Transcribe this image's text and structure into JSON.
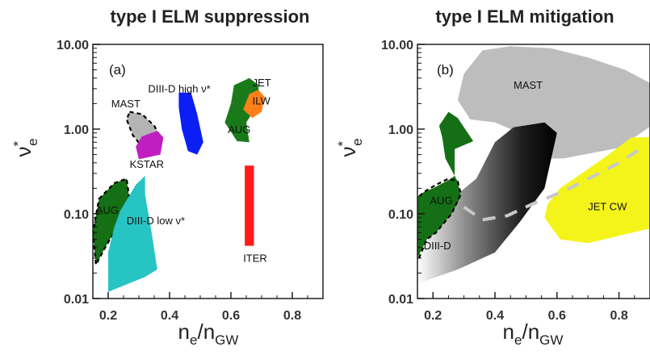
{
  "chart_data": [
    {
      "type": "area",
      "panel": "(a)",
      "title": "type I ELM suppression",
      "xlabel": {
        "main": "n",
        "sub1": "e",
        "sep": "/n",
        "sub2": "GW"
      },
      "ylabel": {
        "main": "ν",
        "sup": "*",
        "sub": "e"
      },
      "xlim": [
        0.15,
        0.9
      ],
      "ylim": [
        0.01,
        10.0
      ],
      "yscale": "log",
      "xticks": [
        0.2,
        0.4,
        0.6,
        0.8
      ],
      "xtick_labels": [
        "0.2",
        "0.4",
        "0.6",
        "0.8"
      ],
      "yticks": [
        0.01,
        0.1,
        1.0,
        10.0
      ],
      "ytick_labels": [
        "0.01",
        "0.10",
        "1.00",
        "10.00"
      ],
      "grid": false,
      "regions": [
        {
          "name": "MAST",
          "color": "#b4b4b4",
          "dashed": true,
          "polygon": [
            [
              0.27,
              1.6
            ],
            [
              0.31,
              1.5
            ],
            [
              0.35,
              1.1
            ],
            [
              0.37,
              0.8
            ],
            [
              0.36,
              0.62
            ],
            [
              0.31,
              0.62
            ],
            [
              0.28,
              0.85
            ],
            [
              0.26,
              1.3
            ]
          ]
        },
        {
          "name": "KSTAR",
          "color": "#c11ec1",
          "polygon": [
            [
              0.31,
              0.82
            ],
            [
              0.36,
              0.95
            ],
            [
              0.38,
              0.8
            ],
            [
              0.37,
              0.5
            ],
            [
              0.3,
              0.44
            ],
            [
              0.29,
              0.62
            ]
          ]
        },
        {
          "name": "DIII-D high ν*",
          "color": "#0b1ff5",
          "polygon": [
            [
              0.43,
              2.7
            ],
            [
              0.47,
              2.7
            ],
            [
              0.49,
              1.5
            ],
            [
              0.51,
              0.7
            ],
            [
              0.49,
              0.5
            ],
            [
              0.46,
              0.55
            ],
            [
              0.44,
              1.0
            ],
            [
              0.43,
              1.8
            ]
          ]
        },
        {
          "name": "AUG",
          "color": "#1a7a1a",
          "polygon": [
            [
              0.61,
              3.3
            ],
            [
              0.66,
              4.0
            ],
            [
              0.69,
              3.3
            ],
            [
              0.69,
              2.0
            ],
            [
              0.65,
              1.2
            ],
            [
              0.66,
              0.7
            ],
            [
              0.62,
              0.72
            ],
            [
              0.58,
              1.2
            ],
            [
              0.6,
              2.0
            ]
          ]
        },
        {
          "name": "JET ILW",
          "color": "#ff7f1a",
          "polygon": [
            [
              0.66,
              2.6
            ],
            [
              0.69,
              2.9
            ],
            [
              0.71,
              2.4
            ],
            [
              0.7,
              1.6
            ],
            [
              0.67,
              1.35
            ],
            [
              0.64,
              1.7
            ]
          ]
        },
        {
          "name": "ITER",
          "color": "#ff1a1a",
          "polygon": [
            [
              0.645,
              0.37
            ],
            [
              0.675,
              0.37
            ],
            [
              0.675,
              0.042
            ],
            [
              0.645,
              0.042
            ]
          ]
        },
        {
          "name": "AUG",
          "color": "#157015",
          "dashed": true,
          "polygon": [
            [
              0.17,
              0.15
            ],
            [
              0.22,
              0.23
            ],
            [
              0.26,
              0.26
            ],
            [
              0.27,
              0.14
            ],
            [
              0.23,
              0.07
            ],
            [
              0.19,
              0.04
            ],
            [
              0.16,
              0.025
            ],
            [
              0.15,
              0.06
            ]
          ]
        },
        {
          "name": "DIII-D low ν*",
          "color": "#27c4c4",
          "polygon": [
            [
              0.2,
              0.012
            ],
            [
              0.32,
              0.018
            ],
            [
              0.36,
              0.022
            ],
            [
              0.34,
              0.065
            ],
            [
              0.32,
              0.17
            ],
            [
              0.32,
              0.28
            ],
            [
              0.29,
              0.22
            ],
            [
              0.24,
              0.11
            ],
            [
              0.22,
              0.07
            ],
            [
              0.2,
              0.035
            ]
          ]
        }
      ],
      "labels": [
        {
          "text": "MAST",
          "x": 0.21,
          "y": 1.8
        },
        {
          "text": "KSTAR",
          "x": 0.27,
          "y": 0.35
        },
        {
          "text": "DIII-D high ν*",
          "x": 0.33,
          "y": 2.7
        },
        {
          "text": "JET",
          "x": 0.67,
          "y": 3.2
        },
        {
          "text": "ILW",
          "x": 0.67,
          "y": 1.95
        },
        {
          "text": "AUG",
          "x": 0.59,
          "y": 0.9
        },
        {
          "text": "AUG",
          "x": 0.16,
          "y": 0.1
        },
        {
          "text": "DIII-D low ν*",
          "x": 0.26,
          "y": 0.075
        },
        {
          "text": "ITER",
          "x": 0.64,
          "y": 0.027
        }
      ]
    },
    {
      "type": "area",
      "panel": "(b)",
      "title": "type I ELM mitigation",
      "xlabel": {
        "main": "n",
        "sub1": "e",
        "sep": "/n",
        "sub2": "GW"
      },
      "ylabel": {
        "main": "ν",
        "sup": "*",
        "sub": "e"
      },
      "xlim": [
        0.15,
        0.9
      ],
      "ylim": [
        0.01,
        10.0
      ],
      "yscale": "log",
      "xticks": [
        0.2,
        0.4,
        0.6,
        0.8
      ],
      "xtick_labels": [
        "0.2",
        "0.4",
        "0.6",
        "0.8"
      ],
      "yticks": [
        0.01,
        0.1,
        1.0,
        10.0
      ],
      "ytick_labels": [
        "0.01",
        "0.10",
        "1.00",
        "10.00"
      ],
      "grid": false,
      "regions": [
        {
          "name": "MAST",
          "color": "#bdbdbd",
          "polygon": [
            [
              0.3,
              4.5
            ],
            [
              0.36,
              8.5
            ],
            [
              0.45,
              9.5
            ],
            [
              0.58,
              9.0
            ],
            [
              0.7,
              7.0
            ],
            [
              0.82,
              5.0
            ],
            [
              0.92,
              3.2
            ],
            [
              0.92,
              1.2
            ],
            [
              0.8,
              0.6
            ],
            [
              0.62,
              0.45
            ],
            [
              0.55,
              0.45
            ],
            [
              0.45,
              1.0
            ],
            [
              0.4,
              1.2
            ],
            [
              0.32,
              1.3
            ],
            [
              0.28,
              2.2
            ]
          ]
        },
        {
          "name": "DIII-D",
          "color": "#000000",
          "gradient": true,
          "polygon": [
            [
              0.15,
              0.015
            ],
            [
              0.28,
              0.022
            ],
            [
              0.4,
              0.035
            ],
            [
              0.48,
              0.08
            ],
            [
              0.56,
              0.2
            ],
            [
              0.6,
              0.9
            ],
            [
              0.56,
              1.2
            ],
            [
              0.46,
              1.05
            ],
            [
              0.4,
              0.7
            ],
            [
              0.34,
              0.26
            ],
            [
              0.26,
              0.15
            ],
            [
              0.2,
              0.1
            ],
            [
              0.15,
              0.06
            ]
          ]
        },
        {
          "name": "JET CW",
          "color": "#f4f41a",
          "polygon": [
            [
              0.56,
              0.09
            ],
            [
              0.61,
              0.05
            ],
            [
              0.7,
              0.045
            ],
            [
              0.8,
              0.055
            ],
            [
              0.92,
              0.07
            ],
            [
              0.92,
              0.8
            ],
            [
              0.84,
              0.8
            ],
            [
              0.76,
              0.48
            ],
            [
              0.68,
              0.3
            ],
            [
              0.61,
              0.2
            ],
            [
              0.57,
              0.13
            ]
          ]
        },
        {
          "name": "AUG",
          "color": "#157015",
          "polygon": [
            [
              0.22,
              1.1
            ],
            [
              0.25,
              1.6
            ],
            [
              0.28,
              1.35
            ],
            [
              0.33,
              0.72
            ],
            [
              0.27,
              0.58
            ],
            [
              0.27,
              0.28
            ],
            [
              0.25,
              0.25
            ],
            [
              0.2,
              0.2
            ],
            [
              0.17,
              0.18
            ],
            [
              0.15,
              0.16
            ],
            [
              0.15,
              0.03
            ],
            [
              0.18,
              0.05
            ],
            [
              0.21,
              0.06
            ],
            [
              0.26,
              0.1
            ],
            [
              0.29,
              0.16
            ],
            [
              0.28,
              0.24
            ],
            [
              0.24,
              0.45
            ],
            [
              0.23,
              0.8
            ]
          ]
        }
      ],
      "dashed_outline": {
        "color": "#000000",
        "points": [
          [
            0.155,
            0.03
          ],
          [
            0.18,
            0.05
          ],
          [
            0.21,
            0.06
          ],
          [
            0.26,
            0.1
          ],
          [
            0.29,
            0.17
          ],
          [
            0.28,
            0.24
          ],
          [
            0.25,
            0.26
          ],
          [
            0.21,
            0.22
          ],
          [
            0.17,
            0.18
          ],
          [
            0.155,
            0.16
          ]
        ]
      },
      "trend_line": {
        "color": "#c8c8c8",
        "points": [
          [
            0.3,
            0.12
          ],
          [
            0.36,
            0.085
          ],
          [
            0.44,
            0.095
          ],
          [
            0.52,
            0.13
          ],
          [
            0.58,
            0.16
          ],
          [
            0.64,
            0.2
          ],
          [
            0.72,
            0.28
          ],
          [
            0.8,
            0.4
          ],
          [
            0.88,
            0.62
          ]
        ]
      },
      "labels": [
        {
          "text": "MAST",
          "x": 0.46,
          "y": 3.0
        },
        {
          "text": "AUG",
          "x": 0.19,
          "y": 0.13
        },
        {
          "text": "DIII-D",
          "x": 0.17,
          "y": 0.038
        },
        {
          "text": "JET CW",
          "x": 0.7,
          "y": 0.11
        }
      ]
    }
  ]
}
